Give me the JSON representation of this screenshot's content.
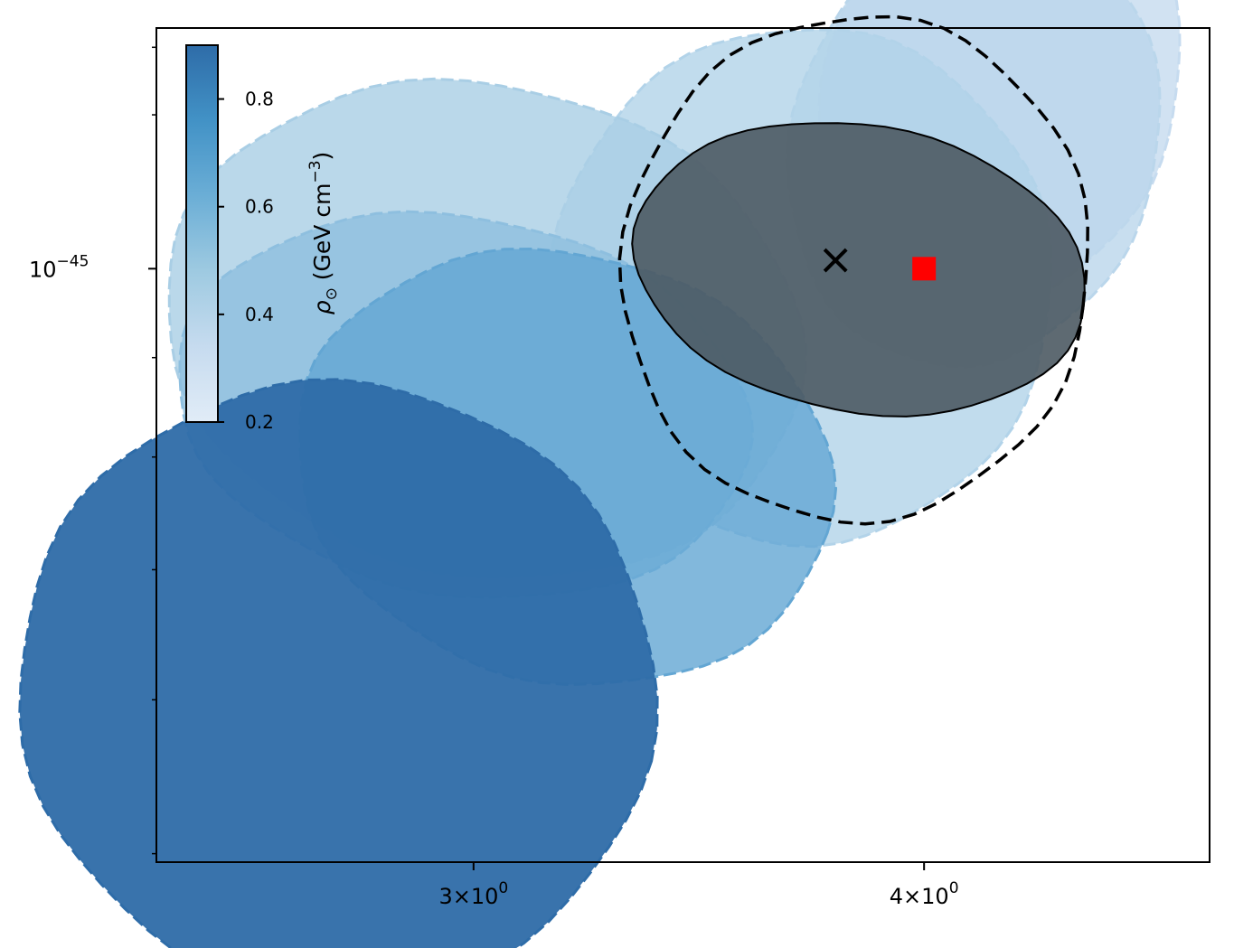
{
  "chart_data": {
    "type": "contour",
    "x_scale": "log",
    "y_scale": "log",
    "xlim": [
      2.45,
      4.8
    ],
    "ylim": [
      4.95e-46,
      1.33e-45
    ],
    "x_ticks": [
      {
        "value": 3,
        "base": "3",
        "exp": "0"
      },
      {
        "value": 4,
        "base": "4",
        "exp": "0"
      }
    ],
    "y_ticks": [
      {
        "value": 1e-45,
        "mant": "10",
        "exp": "−45"
      }
    ],
    "y_minor_ticks": [
      5e-46,
      6e-46,
      7e-46,
      8e-46,
      9e-46,
      1.2e-45,
      1.3e-45
    ],
    "colorbar": {
      "label": "ρ",
      "label_sub": "⊙",
      "label_units": " (GeV cm",
      "label_exp": "−3",
      "label_close": ")",
      "range": [
        0.2,
        0.9
      ],
      "ticks": [
        {
          "value": 0.2,
          "label": "0.2"
        },
        {
          "value": 0.4,
          "label": "0.4"
        },
        {
          "value": 0.6,
          "label": "0.6"
        },
        {
          "value": 0.8,
          "label": "0.8"
        }
      ],
      "colors": [
        "#e1ecf7",
        "#c6dbef",
        "#9ecae1",
        "#6baed6",
        "#4292c6",
        "#2e6ca8"
      ]
    },
    "series": [
      {
        "rho": 0.22,
        "color": "#c6dbef",
        "center": [
          4.2,
          1.24e-45
        ],
        "semi_x": 0.47,
        "semi_y": 0.33,
        "angle_deg": -17
      },
      {
        "rho": 0.3,
        "color": "#bad6eb",
        "center": [
          4.13,
          1.16e-45
        ],
        "semi_x": 0.48,
        "semi_y": 0.31,
        "angle_deg": -17
      },
      {
        "rho": 0.35,
        "color": "#b2d3e9",
        "center": [
          3.7,
          9.8e-46
        ],
        "semi_x": 0.59,
        "semi_y": 0.3,
        "angle_deg": -9
      },
      {
        "rho": 0.4,
        "color": "#a9cee5",
        "center": [
          3.02,
          9.3e-46
        ],
        "semi_x": 0.62,
        "semi_y": 0.27,
        "angle_deg": -12
      },
      {
        "rho": 0.5,
        "color": "#8ebfdf",
        "center": [
          2.98,
          8.5e-46
        ],
        "semi_x": 0.55,
        "semi_y": 0.19,
        "angle_deg": -10
      },
      {
        "rho": 0.6,
        "color": "#63a6d3",
        "center": [
          3.18,
          7.9e-46
        ],
        "semi_x": 0.55,
        "semi_y": 0.2,
        "angle_deg": -14
      },
      {
        "rho": 0.9,
        "color": "#2e6ca8",
        "center": [
          2.75,
          6.08e-46
        ],
        "semi_x": 0.56,
        "semi_y": 0.22,
        "angle_deg": -13
      }
    ],
    "reference_contour": {
      "center": [
        3.84,
        1e-45
      ],
      "semi_x": 0.56,
      "semi_y": 0.17,
      "angle_deg": -10,
      "fill": "#4c5a63",
      "stroke": "#000000"
    },
    "dashed_contour": {
      "center": [
        3.83,
        1e-45
      ],
      "semi_x": 0.57,
      "semi_y": 0.3,
      "angle_deg": -9,
      "stroke": "#000000"
    },
    "markers": [
      {
        "type": "x",
        "x": 3.78,
        "y": 1.01e-45,
        "color": "#000000"
      },
      {
        "type": "square",
        "x": 4.0,
        "y": 1e-45,
        "color": "#ff0000"
      }
    ]
  }
}
